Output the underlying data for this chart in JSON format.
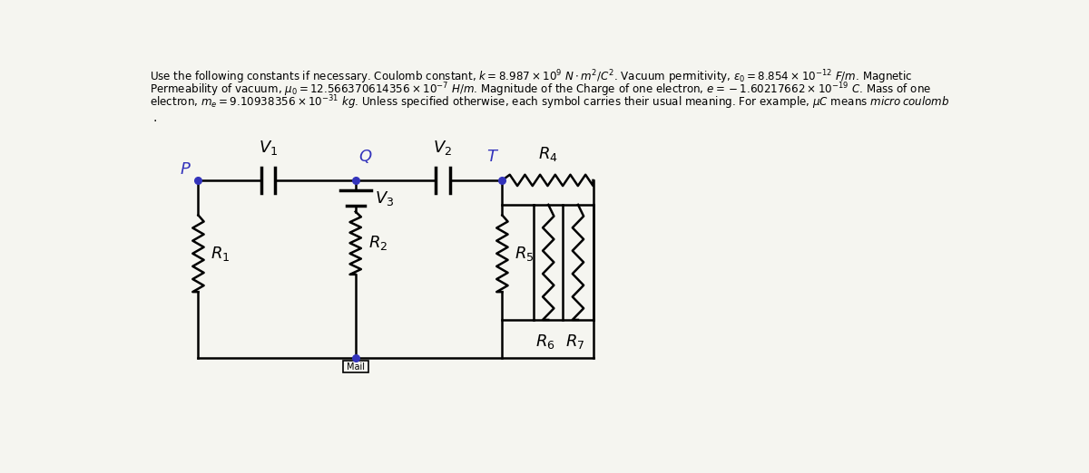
{
  "bg_color": "#f5f5f0",
  "text_color": "#000000",
  "circuit_color": "#000000",
  "blue_color": "#3333bb",
  "label_P": "P",
  "label_Q": "Q",
  "label_T": "T",
  "label_V1": "$V_1$",
  "label_V2": "$V_2$",
  "label_V3": "$V_3$",
  "label_R1": "$R_1$",
  "label_R2": "$R_2$",
  "label_R4": "$R_4$",
  "label_R5": "$R_5$",
  "label_R6": "$R_6$",
  "label_R7": "$R_7$",
  "label_Mail": "Mail"
}
